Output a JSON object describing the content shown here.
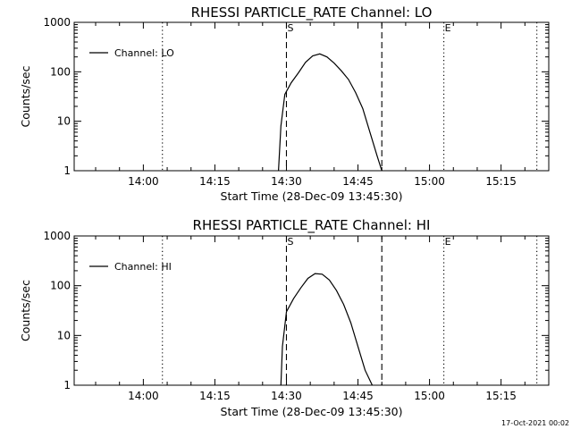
{
  "chart_data": [
    {
      "type": "line",
      "title": "RHESSI PARTICLE_RATE Channel: LO",
      "xlabel": "Start Time (28-Dec-09 13:45:30)",
      "ylabel": "Counts/sec",
      "yscale": "log",
      "ylim": [
        1,
        1000
      ],
      "xlim": [
        "13:45:30",
        "15:25:00"
      ],
      "x_ticks": [
        "14:00",
        "14:15",
        "14:30",
        "14:45",
        "15:00",
        "15:15"
      ],
      "y_ticks": [
        "1",
        "10",
        "100",
        "1000"
      ],
      "legend": [
        "Channel: LO"
      ],
      "legend_placement": "top-left",
      "markers": [
        {
          "label": "S",
          "x": "14:30:00",
          "style": "dashed"
        },
        {
          "label": "",
          "x": "14:50:00",
          "style": "dashed"
        },
        {
          "label": "E",
          "x": "15:03:00",
          "style": "dotted"
        },
        {
          "label": "",
          "x": "14:04:00",
          "style": "dotted"
        },
        {
          "label": "",
          "x": "15:22:30",
          "style": "dotted"
        }
      ],
      "series": [
        {
          "name": "Channel: LO",
          "x": [
            "14:28:20",
            "14:28:50",
            "14:29:40",
            "14:31:00",
            "14:32:30",
            "14:34:00",
            "14:35:30",
            "14:37:00",
            "14:38:30",
            "14:40:00",
            "14:41:30",
            "14:43:00",
            "14:44:30",
            "14:46:00",
            "14:47:30",
            "14:49:00",
            "14:50:00"
          ],
          "values": [
            1,
            8,
            35,
            60,
            95,
            155,
            210,
            230,
            200,
            150,
            105,
            70,
            38,
            18,
            6,
            2,
            1
          ]
        }
      ]
    },
    {
      "type": "line",
      "title": "RHESSI PARTICLE_RATE Channel: HI",
      "xlabel": "Start Time (28-Dec-09 13:45:30)",
      "ylabel": "Counts/sec",
      "yscale": "log",
      "ylim": [
        1,
        1000
      ],
      "xlim": [
        "13:45:30",
        "15:25:00"
      ],
      "x_ticks": [
        "14:00",
        "14:15",
        "14:30",
        "14:45",
        "15:00",
        "15:15"
      ],
      "y_ticks": [
        "1",
        "10",
        "100",
        "1000"
      ],
      "legend": [
        "Channel: HI"
      ],
      "legend_placement": "top-left",
      "markers": [
        {
          "label": "S",
          "x": "14:30:00",
          "style": "dashed"
        },
        {
          "label": "",
          "x": "14:50:00",
          "style": "dashed"
        },
        {
          "label": "E",
          "x": "15:03:00",
          "style": "dotted"
        },
        {
          "label": "",
          "x": "14:04:00",
          "style": "dotted"
        },
        {
          "label": "",
          "x": "15:22:30",
          "style": "dotted"
        }
      ],
      "series": [
        {
          "name": "Channel: HI",
          "x": [
            "14:28:50",
            "14:29:10",
            "14:30:00",
            "14:31:30",
            "14:33:00",
            "14:34:30",
            "14:36:00",
            "14:37:30",
            "14:39:00",
            "14:40:30",
            "14:42:00",
            "14:43:30",
            "14:45:00",
            "14:46:30",
            "14:48:00"
          ],
          "values": [
            1,
            6,
            30,
            55,
            90,
            140,
            175,
            170,
            130,
            80,
            42,
            18,
            6,
            2,
            1
          ]
        }
      ]
    }
  ],
  "footer": {
    "timestamp": "17-Oct-2021 00:02"
  }
}
